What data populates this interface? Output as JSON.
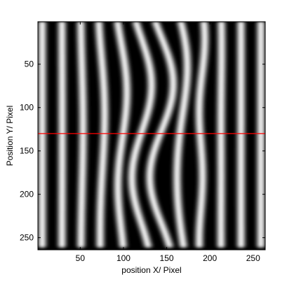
{
  "chart_data": {
    "type": "heatmap",
    "colormap": "gray",
    "xlabel": "position X/ Pixel",
    "ylabel": "Position Y/ Pixel",
    "xlim": [
      1,
      264
    ],
    "ylim": [
      1,
      264
    ],
    "y_direction": "reversed",
    "x_ticks": [
      50,
      100,
      150,
      200,
      250
    ],
    "y_ticks": [
      50,
      100,
      150,
      200,
      250
    ],
    "x_tick_labels": [
      "50",
      "100",
      "150",
      "200",
      "250"
    ],
    "y_tick_labels": [
      "50",
      "100",
      "150",
      "200",
      "250"
    ],
    "grid": false,
    "legend": "none",
    "pattern": "vertical interference fringes, distorted in the centre region (x 80-200)",
    "fringe_period_px": 23,
    "highlight_line": {
      "orientation": "horizontal",
      "y": 130,
      "color": "#ff0000"
    }
  }
}
